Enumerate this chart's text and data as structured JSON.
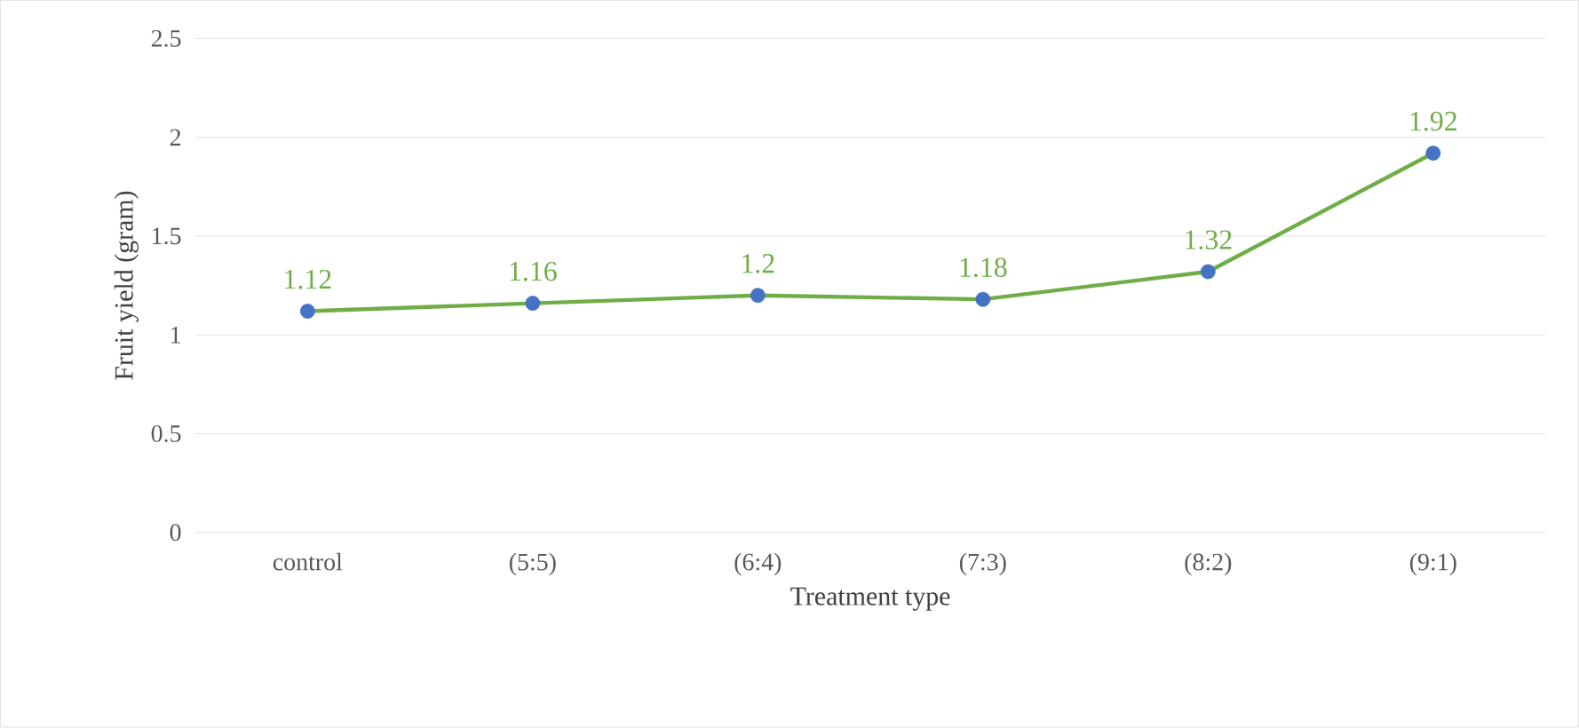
{
  "chart_data": {
    "type": "line",
    "xlabel": "Treatment type",
    "ylabel": "Fruit yield (gram)",
    "categories": [
      "control",
      "(5:5)",
      "(6:4)",
      "(7:3)",
      "(8:2)",
      "(9:1)"
    ],
    "values": [
      1.12,
      1.16,
      1.2,
      1.18,
      1.32,
      1.92
    ],
    "color": "#70ad47",
    "colors": [
      "#4472c4",
      "#4472c4",
      "#4472c4",
      "#4472c4",
      "#4472c4",
      "#4472c4"
    ],
    "marker": "circle",
    "line_style": "solid",
    "ylim": [
      0,
      2.5
    ],
    "yticks": [
      0,
      0.5,
      1,
      1.5,
      2,
      2.5
    ],
    "grid": "y",
    "data_labels": true
  }
}
